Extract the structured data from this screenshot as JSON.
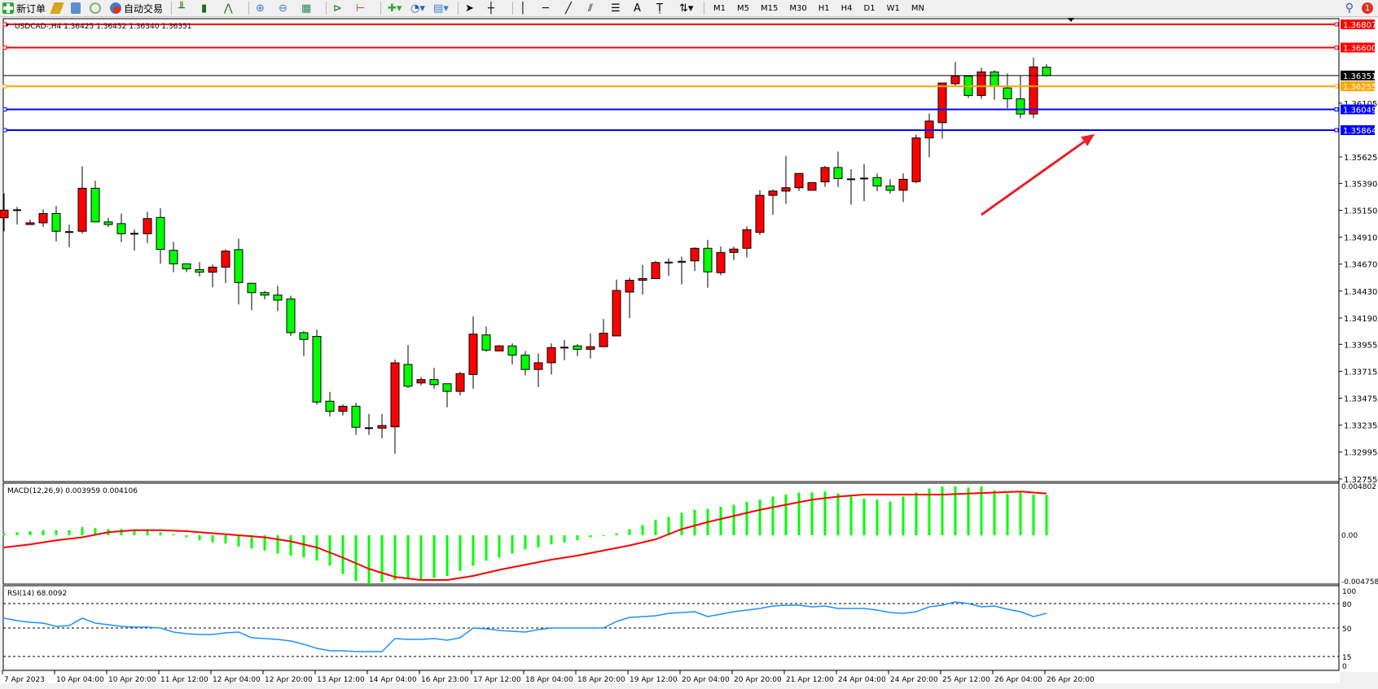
{
  "toolbar": {
    "new_order_label": "新订单",
    "auto_trading_label": "自动交易",
    "timeframes": [
      "M1",
      "M5",
      "M15",
      "M30",
      "H1",
      "H4",
      "D1",
      "W1",
      "MN"
    ],
    "notification_count": "1",
    "icons": [
      "new-order-icon",
      "gold-bars-icon",
      "market-watch-icon",
      "signal-icon",
      "auto-trading-icon",
      "bar-chart-icon",
      "candlestick-icon",
      "line-chart-icon",
      "zoom-in-icon",
      "zoom-out-icon",
      "tile-windows-icon",
      "auto-scroll-icon",
      "chart-shift-icon",
      "indicators-icon",
      "periods-icon",
      "templates-icon",
      "cursor-icon",
      "crosshair-icon",
      "vertical-line-icon",
      "horizontal-line-icon",
      "trendline-icon",
      "fibonacci-channel-icon",
      "fibonacci-icon",
      "text-icon",
      "text-label-icon",
      "arrows-icon",
      "search-icon",
      "notifications-icon"
    ]
  },
  "chart_header": "USDCAD-,H4  1.36425 1.36452 1.36340 1.36351",
  "colors": {
    "bull": "#ff0000",
    "bear": "#00ff00",
    "doji": "#000000",
    "rsi": "#1e90ff",
    "signal": "#ff0000",
    "histogram": "#00ff00",
    "arrow": "#e8202a"
  },
  "chart_data": [
    {
      "type": "candlestick",
      "symbol": "USDCAD-",
      "timeframe": "H4",
      "ylim": [
        1.3271,
        1.3685
      ],
      "y_ticks": [
        "1.36105",
        "1.35625",
        "1.35390",
        "1.35150",
        "1.34910",
        "1.34670",
        "1.34430",
        "1.34190",
        "1.33955",
        "1.33715",
        "1.33475",
        "1.33235",
        "1.32995",
        "1.32755"
      ],
      "x_tick_labels": [
        "7 Apr 2023",
        "10 Apr 04:00",
        "10 Apr 20:00",
        "11 Apr 12:00",
        "12 Apr 04:00",
        "12 Apr 20:00",
        "13 Apr 12:00",
        "14 Apr 04:00",
        "16 Apr 23:00",
        "17 Apr 12:00",
        "18 Apr 04:00",
        "18 Apr 20:00",
        "19 Apr 12:00",
        "20 Apr 04:00",
        "20 Apr 20:00",
        "21 Apr 12:00",
        "24 Apr 04:00",
        "24 Apr 20:00",
        "25 Apr 12:00",
        "26 Apr 04:00",
        "26 Apr 20:00"
      ],
      "x_tick_every_bars": 4,
      "ohlc": [
        [
          1.35083,
          1.35301,
          1.34963,
          1.35151
        ],
        [
          1.35151,
          1.35181,
          1.35023,
          1.35151
        ],
        [
          1.35023,
          1.35068,
          1.35023,
          1.35038
        ],
        [
          1.35038,
          1.35158,
          1.35001,
          1.35121
        ],
        [
          1.35121,
          1.35188,
          1.34873,
          1.34963
        ],
        [
          1.34956,
          1.35023,
          1.34821,
          1.34956
        ],
        [
          1.34963,
          1.35541,
          1.34941,
          1.35346
        ],
        [
          1.35346,
          1.35413,
          1.35046,
          1.35046
        ],
        [
          1.35046,
          1.35083,
          1.35001,
          1.35023
        ],
        [
          1.35031,
          1.35121,
          1.34866,
          1.34941
        ],
        [
          1.34941,
          1.34978,
          1.34791,
          1.34941
        ],
        [
          1.34941,
          1.35136,
          1.34858,
          1.35076
        ],
        [
          1.35086,
          1.35168,
          1.34673,
          1.34801
        ],
        [
          1.34793,
          1.34868,
          1.34598,
          1.34673
        ],
        [
          1.34673,
          1.34673,
          1.34598,
          1.34628
        ],
        [
          1.34621,
          1.34688,
          1.34561,
          1.34598
        ],
        [
          1.34598,
          1.34666,
          1.34463,
          1.34643
        ],
        [
          1.34643,
          1.34801,
          1.34501,
          1.34786
        ],
        [
          1.34799,
          1.34896,
          1.34311,
          1.34506
        ],
        [
          1.34499,
          1.34506,
          1.34259,
          1.34416
        ],
        [
          1.34416,
          1.34431,
          1.34356,
          1.34394
        ],
        [
          1.34394,
          1.34476,
          1.34251,
          1.34349
        ],
        [
          1.34359,
          1.34389,
          1.34029,
          1.34059
        ],
        [
          1.34059,
          1.34074,
          1.33849,
          1.33999
        ],
        [
          1.34026,
          1.34086,
          1.33418,
          1.33441
        ],
        [
          1.33448,
          1.33531,
          1.33313,
          1.33358
        ],
        [
          1.33358,
          1.33418,
          1.33321,
          1.33403
        ],
        [
          1.33403,
          1.33433,
          1.33148,
          1.33216
        ],
        [
          1.33208,
          1.33336,
          1.33148,
          1.33208
        ],
        [
          1.33208,
          1.33336,
          1.33118,
          1.33231
        ],
        [
          1.3322,
          1.3382,
          1.3298,
          1.3379
        ],
        [
          1.33776,
          1.33949,
          1.33566,
          1.33581
        ],
        [
          1.33611,
          1.33664,
          1.33589,
          1.33641
        ],
        [
          1.33641,
          1.33746,
          1.33559,
          1.33596
        ],
        [
          1.33604,
          1.33604,
          1.33394,
          1.33536
        ],
        [
          1.33536,
          1.33709,
          1.33499,
          1.33694
        ],
        [
          1.33686,
          1.34204,
          1.33559,
          1.34046
        ],
        [
          1.34039,
          1.34114,
          1.33889,
          1.33904
        ],
        [
          1.33896,
          1.33949,
          1.33896,
          1.33941
        ],
        [
          1.33941,
          1.33964,
          1.33776,
          1.33859
        ],
        [
          1.33859,
          1.33896,
          1.33679,
          1.33731
        ],
        [
          1.33731,
          1.33874,
          1.33574,
          1.33791
        ],
        [
          1.33791,
          1.33964,
          1.33686,
          1.33926
        ],
        [
          1.33926,
          1.33994,
          1.33814,
          1.33926
        ],
        [
          1.33941,
          1.33956,
          1.33851,
          1.33911
        ],
        [
          1.33911,
          1.34054,
          1.33829,
          1.33934
        ],
        [
          1.33934,
          1.34181,
          1.33934,
          1.34054
        ],
        [
          1.3403,
          1.34533,
          1.3403,
          1.34435
        ],
        [
          1.34421,
          1.34549,
          1.34189,
          1.34526
        ],
        [
          1.34526,
          1.34661,
          1.34399,
          1.34541
        ],
        [
          1.34541,
          1.34699,
          1.34541,
          1.34684
        ],
        [
          1.34684,
          1.34721,
          1.34564,
          1.34684
        ],
        [
          1.34691,
          1.34736,
          1.34489,
          1.34691
        ],
        [
          1.34699,
          1.34819,
          1.34609,
          1.34811
        ],
        [
          1.34811,
          1.34886,
          1.34459,
          1.34601
        ],
        [
          1.34594,
          1.34826,
          1.34571,
          1.34774
        ],
        [
          1.34774,
          1.34826,
          1.34706,
          1.34804
        ],
        [
          1.34811,
          1.35006,
          1.34729,
          1.34976
        ],
        [
          1.34953,
          1.35328,
          1.34931,
          1.35283
        ],
        [
          1.35283,
          1.35336,
          1.35111,
          1.35321
        ],
        [
          1.35321,
          1.35636,
          1.35208,
          1.35351
        ],
        [
          1.35351,
          1.35478,
          1.35321,
          1.35478
        ],
        [
          1.35328,
          1.35396,
          1.35328,
          1.35396
        ],
        [
          1.35403,
          1.35546,
          1.35358,
          1.35531
        ],
        [
          1.35531,
          1.35673,
          1.35358,
          1.35433
        ],
        [
          1.35426,
          1.35516,
          1.35201,
          1.35426
        ],
        [
          1.35433,
          1.35561,
          1.35231,
          1.35433
        ],
        [
          1.35441,
          1.35478,
          1.35321,
          1.35366
        ],
        [
          1.35366,
          1.35426,
          1.35298,
          1.35328
        ],
        [
          1.35328,
          1.35478,
          1.35223,
          1.35426
        ],
        [
          1.35405,
          1.35825,
          1.3539,
          1.35795
        ],
        [
          1.35795,
          1.36013,
          1.35623,
          1.35945
        ],
        [
          1.35931,
          1.36284,
          1.35789,
          1.36284
        ],
        [
          1.36278,
          1.36473,
          1.36255,
          1.36345
        ],
        [
          1.36345,
          1.36345,
          1.3615,
          1.36173
        ],
        [
          1.36173,
          1.3642,
          1.36143,
          1.36383
        ],
        [
          1.36383,
          1.36398,
          1.36135,
          1.36255
        ],
        [
          1.3624,
          1.36368,
          1.3606,
          1.36143
        ],
        [
          1.36143,
          1.36353,
          1.3597,
          1.36008
        ],
        [
          1.36008,
          1.3651,
          1.3597,
          1.36428
        ],
        [
          1.36425,
          1.36452,
          1.3634,
          1.36351
        ]
      ],
      "horizontal_lines": [
        {
          "price": "1.36807",
          "color": "#ff0000"
        },
        {
          "price": "1.36600",
          "color": "#ff0000"
        },
        {
          "price": "1.36255",
          "color": "#ffa500"
        },
        {
          "price": "1.36049",
          "color": "#0000ff"
        },
        {
          "price": "1.35864",
          "color": "#0000ff"
        }
      ],
      "current_price": {
        "price": "1.36351",
        "color": "#000000"
      },
      "annotation": {
        "type": "arrow",
        "color": "#e8202a",
        "direction": "up-right",
        "from_bar": 75,
        "from_price": 1.3511,
        "to_bar": 83.7,
        "to_price": 1.3583
      }
    },
    {
      "type": "bar+line",
      "indicator_label": "MACD(12,26,9) 0.003959 0.004106",
      "y_tick_labels": [
        "0.004802",
        "0.00",
        "-0.004758"
      ],
      "ylim": [
        -0.004758,
        0.004802
      ],
      "histogram": [
        0.0002,
        0.0003,
        0.0004,
        0.0005,
        0.0005,
        0.0005,
        0.0008,
        0.0007,
        0.0006,
        0.0006,
        0.0005,
        0.0006,
        0.0003,
        0.0001,
        -0.0002,
        -0.0005,
        -0.0007,
        -0.0008,
        -0.0011,
        -0.0013,
        -0.0015,
        -0.0018,
        -0.002,
        -0.0022,
        -0.0025,
        -0.003,
        -0.0038,
        -0.0045,
        -0.0048,
        -0.0046,
        -0.0044,
        -0.0043,
        -0.0044,
        -0.0042,
        -0.004,
        -0.0035,
        -0.003,
        -0.0025,
        -0.0022,
        -0.0018,
        -0.0014,
        -0.0012,
        -0.0009,
        -0.0007,
        -0.0005,
        -0.0002,
        0.0,
        0.0002,
        0.0006,
        0.001,
        0.0015,
        0.0018,
        0.0022,
        0.0025,
        0.0026,
        0.0028,
        0.003,
        0.0033,
        0.0035,
        0.0038,
        0.004,
        0.0042,
        0.0042,
        0.0043,
        0.0041,
        0.0038,
        0.0036,
        0.0035,
        0.0033,
        0.0038,
        0.0042,
        0.0046,
        0.0048,
        0.0048,
        0.0047,
        0.0048,
        0.0044,
        0.0041,
        0.0042,
        0.004,
        0.003959
      ],
      "signal": [
        -0.0012,
        -0.00105,
        -0.0009,
        -0.0007,
        -0.0005,
        -0.00035,
        -0.0002,
        5e-05,
        0.0003,
        0.0004,
        0.0005,
        0.0005,
        0.0005,
        0.00045,
        0.0004,
        0.0003,
        0.0002,
        0.0001,
        0.0,
        -0.0001,
        -0.0002,
        -0.0004,
        -0.0006,
        -0.0009,
        -0.0012,
        -0.0017,
        -0.0022,
        -0.00275,
        -0.0033,
        -0.0037,
        -0.0041,
        -0.00425,
        -0.0044,
        -0.0044,
        -0.0044,
        -0.0042,
        -0.004,
        -0.0037,
        -0.0034,
        -0.00315,
        -0.0029,
        -0.00265,
        -0.0024,
        -0.0022,
        -0.002,
        -0.00175,
        -0.0015,
        -0.00125,
        -0.001,
        -0.0007,
        -0.0004,
        0.0001,
        0.0006,
        0.00095,
        0.0013,
        0.0016,
        0.0019,
        0.0022,
        0.0025,
        0.00275,
        0.003,
        0.00325,
        0.0035,
        0.00365,
        0.0038,
        0.0039,
        0.004,
        0.004,
        0.004,
        0.004,
        0.004,
        0.004,
        0.004,
        0.00405,
        0.0041,
        0.00415,
        0.0042,
        0.00425,
        0.0043,
        0.0042,
        0.004106
      ]
    },
    {
      "type": "line",
      "indicator_label": "RSI(14) 68.0092",
      "ylim": [
        0,
        100
      ],
      "y_tick_labels": [
        "100",
        "80",
        "50",
        "15",
        "0"
      ],
      "levels": [
        80,
        50,
        15
      ],
      "values": [
        62,
        59,
        57,
        56,
        52,
        53,
        62,
        56,
        54,
        52,
        51,
        51,
        50,
        45,
        43,
        42,
        42,
        44,
        45,
        38,
        37,
        36,
        34,
        30,
        25,
        22,
        22,
        21,
        21,
        21,
        37,
        36,
        36,
        37,
        35,
        38,
        50,
        49,
        47,
        46,
        45,
        48,
        50,
        50,
        50,
        50,
        50,
        58,
        63,
        64,
        65,
        68,
        69,
        70,
        64,
        67,
        70,
        72,
        74,
        77,
        78,
        78,
        76,
        77,
        74,
        74,
        74,
        72,
        69,
        68,
        70,
        76,
        78,
        82,
        80,
        76,
        77,
        73,
        70,
        64,
        68.0092
      ]
    }
  ]
}
